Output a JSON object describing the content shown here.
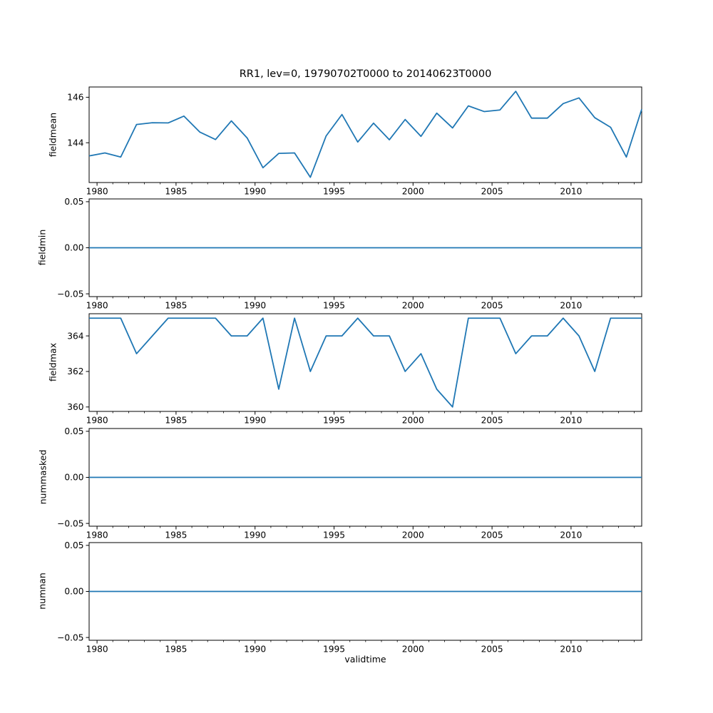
{
  "figure": {
    "title": "RR1, lev=0, 19790702T0000 to 20140623T0000",
    "xlabel": "validtime",
    "line_color": "#1f77b4",
    "axis_color": "#000000",
    "background": "#ffffff"
  },
  "x_axis": {
    "label": "validtime",
    "xlim": [
      1979.5,
      2014.47
    ],
    "major_ticks": [
      {
        "v": 1980,
        "label": "1980"
      },
      {
        "v": 1985,
        "label": "1985"
      },
      {
        "v": 1990,
        "label": "1990"
      },
      {
        "v": 1995,
        "label": "1995"
      },
      {
        "v": 2000,
        "label": "2000"
      },
      {
        "v": 2005,
        "label": "2005"
      },
      {
        "v": 2010,
        "label": "2010"
      }
    ],
    "minor_ticks_start": 1980,
    "minor_ticks_end": 2014,
    "minor_step": 1
  },
  "chart_data": [
    {
      "type": "line",
      "name": "fieldmean",
      "ylabel": "fieldmean",
      "ylim": [
        142.25,
        146.45
      ],
      "yticks": [
        {
          "v": 144,
          "label": "144"
        },
        {
          "v": 146,
          "label": "146"
        }
      ],
      "x": [
        1979.5,
        1980.5,
        1981.5,
        1982.5,
        1983.5,
        1984.5,
        1985.5,
        1986.5,
        1987.5,
        1988.5,
        1989.5,
        1990.5,
        1991.5,
        1992.5,
        1993.5,
        1994.5,
        1995.5,
        1996.5,
        1997.5,
        1998.5,
        1999.5,
        2000.5,
        2001.5,
        2002.5,
        2003.5,
        2004.5,
        2005.5,
        2006.5,
        2007.5,
        2008.5,
        2009.5,
        2010.5,
        2011.5,
        2012.5,
        2013.5,
        2014.47
      ],
      "values": [
        143.42,
        143.55,
        143.37,
        144.8,
        144.88,
        144.87,
        145.17,
        144.47,
        144.14,
        144.96,
        144.21,
        142.9,
        143.53,
        143.55,
        142.48,
        144.3,
        145.24,
        144.03,
        144.86,
        144.13,
        145.02,
        144.28,
        145.3,
        144.65,
        145.62,
        145.37,
        145.44,
        146.26,
        145.08,
        145.08,
        145.72,
        145.97,
        145.1,
        144.68,
        143.37,
        145.47
      ]
    },
    {
      "type": "line",
      "name": "fieldmin",
      "ylabel": "fieldmin",
      "ylim": [
        -0.053,
        0.053
      ],
      "yticks": [
        {
          "v": -0.05,
          "label": "−0.05"
        },
        {
          "v": 0.0,
          "label": "0.00"
        },
        {
          "v": 0.05,
          "label": "0.05"
        }
      ],
      "x": [
        1979.5,
        1980.5,
        1981.5,
        1982.5,
        1983.5,
        1984.5,
        1985.5,
        1986.5,
        1987.5,
        1988.5,
        1989.5,
        1990.5,
        1991.5,
        1992.5,
        1993.5,
        1994.5,
        1995.5,
        1996.5,
        1997.5,
        1998.5,
        1999.5,
        2000.5,
        2001.5,
        2002.5,
        2003.5,
        2004.5,
        2005.5,
        2006.5,
        2007.5,
        2008.5,
        2009.5,
        2010.5,
        2011.5,
        2012.5,
        2013.5,
        2014.47
      ],
      "values": [
        0,
        0,
        0,
        0,
        0,
        0,
        0,
        0,
        0,
        0,
        0,
        0,
        0,
        0,
        0,
        0,
        0,
        0,
        0,
        0,
        0,
        0,
        0,
        0,
        0,
        0,
        0,
        0,
        0,
        0,
        0,
        0,
        0,
        0,
        0,
        0
      ]
    },
    {
      "type": "line",
      "name": "fieldmax",
      "ylabel": "fieldmax",
      "ylim": [
        359.75,
        365.25
      ],
      "yticks": [
        {
          "v": 360,
          "label": "360"
        },
        {
          "v": 362,
          "label": "362"
        },
        {
          "v": 364,
          "label": "364"
        }
      ],
      "x": [
        1979.5,
        1980.5,
        1981.5,
        1982.5,
        1983.5,
        1984.5,
        1985.5,
        1986.5,
        1987.5,
        1988.5,
        1989.5,
        1990.5,
        1991.5,
        1992.5,
        1993.5,
        1994.5,
        1995.5,
        1996.5,
        1997.5,
        1998.5,
        1999.5,
        2000.5,
        2001.5,
        2002.5,
        2003.5,
        2004.5,
        2005.5,
        2006.5,
        2007.5,
        2008.5,
        2009.5,
        2010.5,
        2011.5,
        2012.5,
        2013.5,
        2014.47
      ],
      "values": [
        365,
        365,
        365,
        363,
        364,
        365,
        365,
        365,
        365,
        364,
        364,
        365,
        361,
        365,
        362,
        364,
        364,
        365,
        364,
        364,
        362,
        363,
        361,
        360,
        365,
        365,
        365,
        363,
        364,
        364,
        365,
        364,
        362,
        365,
        365,
        365
      ]
    },
    {
      "type": "line",
      "name": "nummasked",
      "ylabel": "nummasked",
      "ylim": [
        -0.053,
        0.053
      ],
      "yticks": [
        {
          "v": -0.05,
          "label": "−0.05"
        },
        {
          "v": 0.0,
          "label": "0.00"
        },
        {
          "v": 0.05,
          "label": "0.05"
        }
      ],
      "x": [
        1979.5,
        1980.5,
        1981.5,
        1982.5,
        1983.5,
        1984.5,
        1985.5,
        1986.5,
        1987.5,
        1988.5,
        1989.5,
        1990.5,
        1991.5,
        1992.5,
        1993.5,
        1994.5,
        1995.5,
        1996.5,
        1997.5,
        1998.5,
        1999.5,
        2000.5,
        2001.5,
        2002.5,
        2003.5,
        2004.5,
        2005.5,
        2006.5,
        2007.5,
        2008.5,
        2009.5,
        2010.5,
        2011.5,
        2012.5,
        2013.5,
        2014.47
      ],
      "values": [
        0,
        0,
        0,
        0,
        0,
        0,
        0,
        0,
        0,
        0,
        0,
        0,
        0,
        0,
        0,
        0,
        0,
        0,
        0,
        0,
        0,
        0,
        0,
        0,
        0,
        0,
        0,
        0,
        0,
        0,
        0,
        0,
        0,
        0,
        0,
        0
      ]
    },
    {
      "type": "line",
      "name": "numnan",
      "ylabel": "numnan",
      "ylim": [
        -0.053,
        0.053
      ],
      "yticks": [
        {
          "v": -0.05,
          "label": "−0.05"
        },
        {
          "v": 0.0,
          "label": "0.00"
        },
        {
          "v": 0.05,
          "label": "0.05"
        }
      ],
      "x": [
        1979.5,
        1980.5,
        1981.5,
        1982.5,
        1983.5,
        1984.5,
        1985.5,
        1986.5,
        1987.5,
        1988.5,
        1989.5,
        1990.5,
        1991.5,
        1992.5,
        1993.5,
        1994.5,
        1995.5,
        1996.5,
        1997.5,
        1998.5,
        1999.5,
        2000.5,
        2001.5,
        2002.5,
        2003.5,
        2004.5,
        2005.5,
        2006.5,
        2007.5,
        2008.5,
        2009.5,
        2010.5,
        2011.5,
        2012.5,
        2013.5,
        2014.47
      ],
      "values": [
        0,
        0,
        0,
        0,
        0,
        0,
        0,
        0,
        0,
        0,
        0,
        0,
        0,
        0,
        0,
        0,
        0,
        0,
        0,
        0,
        0,
        0,
        0,
        0,
        0,
        0,
        0,
        0,
        0,
        0,
        0,
        0,
        0,
        0,
        0,
        0
      ]
    }
  ]
}
